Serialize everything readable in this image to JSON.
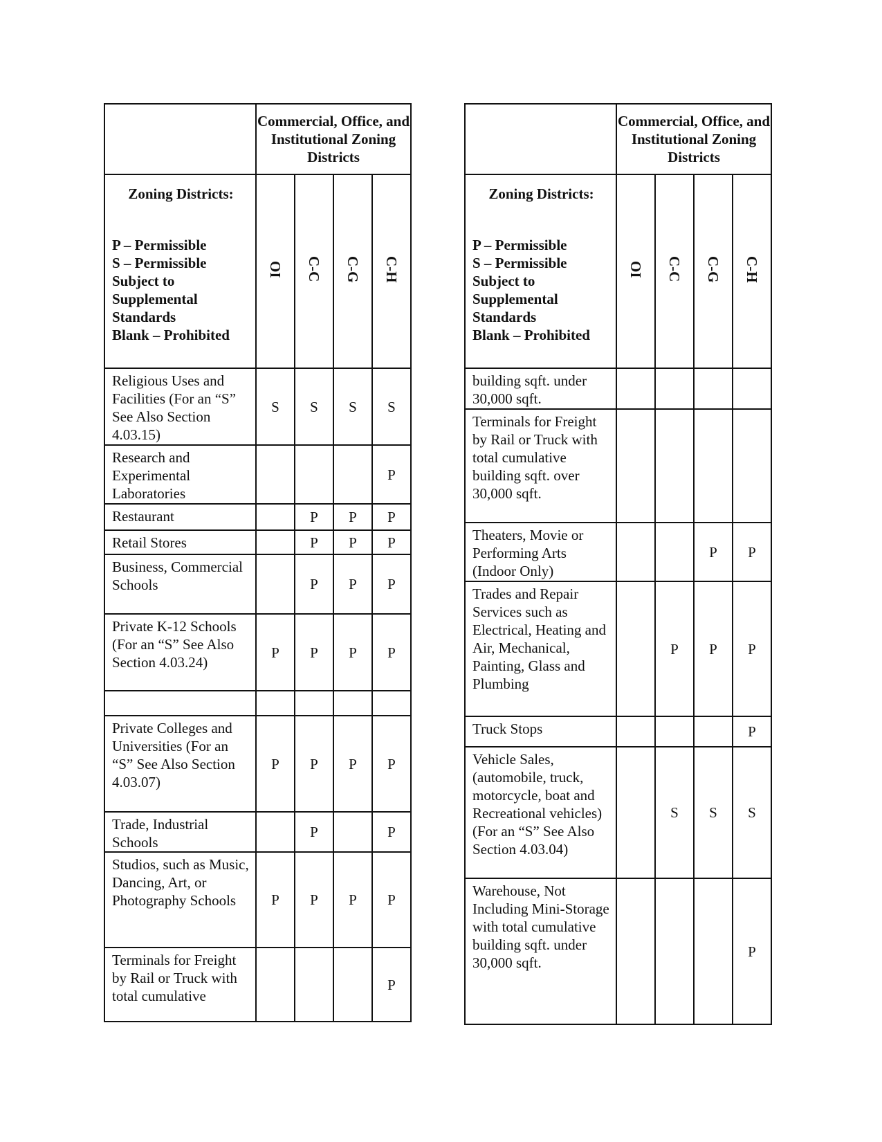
{
  "tables": [
    {
      "header": {
        "group": "Commercial, Office, and Institutional Zoning Districts",
        "legend_title": "Zoning Districts:",
        "legend": [
          "P – Permissible",
          "S – Permissible Subject to Supplemental Standards",
          "Blank – Prohibited"
        ],
        "columns": [
          "OI",
          "C-C",
          "C-G",
          "C-H"
        ]
      },
      "rows": [
        {
          "use": "Religious Uses and Facilities (For an “S” See Also Section 4.03.15)",
          "cells": [
            "S",
            "S",
            "S",
            "S"
          ]
        },
        {
          "use": "Research and Experimental Laboratories",
          "cells": [
            null,
            null,
            null,
            "P"
          ]
        },
        {
          "use": "Restaurant",
          "cells": [
            null,
            "P",
            "P",
            "P"
          ]
        },
        {
          "use": "Retail Stores",
          "cells": [
            null,
            "P",
            "P",
            "P"
          ]
        },
        {
          "use": "Business, Commercial Schools",
          "cells": [
            null,
            "P",
            "P",
            "P"
          ]
        },
        {
          "use": "Private K-12 Schools (For an “S” See Also Section 4.03.24)",
          "cells": [
            "P",
            "P",
            "P",
            "P"
          ]
        },
        {
          "use": null,
          "cells": [
            null,
            null,
            null,
            null
          ]
        },
        {
          "use": "Private Colleges and Universities (For an “S” See Also Section 4.03.07)",
          "cells": [
            "P",
            "P",
            "P",
            "P"
          ]
        },
        {
          "use": "Trade, Industrial Schools",
          "cells": [
            null,
            "P",
            null,
            "P"
          ]
        },
        {
          "use": "Studios, such as Music, Dancing, Art, or Photography Schools",
          "cells": [
            "P",
            "P",
            "P",
            "P"
          ]
        },
        {
          "use": "Terminals for Freight by Rail or Truck with total cumulative",
          "cells": [
            null,
            null,
            null,
            "P"
          ]
        }
      ]
    },
    {
      "header": {
        "group": "Commercial, Office, and Institutional Zoning Districts",
        "legend_title": "Zoning Districts:",
        "legend": [
          "P – Permissible",
          "S – Permissible Subject to Supplemental Standards",
          "Blank – Prohibited"
        ],
        "columns": [
          "OI",
          "C-C",
          "C-G",
          "C-H"
        ]
      },
      "rows": [
        {
          "use": "building sqft. under 30,000 sqft.",
          "cells": [
            null,
            null,
            null,
            null
          ]
        },
        {
          "use": "Terminals for Freight by Rail or Truck with total cumulative building sqft. over 30,000 sqft.",
          "cells": [
            null,
            null,
            null,
            null
          ]
        },
        {
          "use": "Theaters, Movie or Performing Arts (Indoor Only)",
          "cells": [
            null,
            null,
            "P",
            "P"
          ]
        },
        {
          "use": "Trades and Repair Services such as Electrical, Heating and Air, Mechanical, Painting, Glass and Plumbing",
          "cells": [
            null,
            "P",
            "P",
            "P"
          ]
        },
        {
          "use": "Truck Stops",
          "cells": [
            null,
            null,
            null,
            "P"
          ]
        },
        {
          "use": "Vehicle Sales, (automobile, truck, motorcycle, boat and Recreational vehicles) (For an “S” See Also Section 4.03.04)",
          "cells": [
            null,
            "S",
            "S",
            "S"
          ]
        },
        {
          "use": "Warehouse, Not Including Mini-Storage with total cumulative building sqft. under 30,000 sqft.",
          "cells": [
            null,
            null,
            null,
            "P"
          ]
        }
      ]
    }
  ]
}
